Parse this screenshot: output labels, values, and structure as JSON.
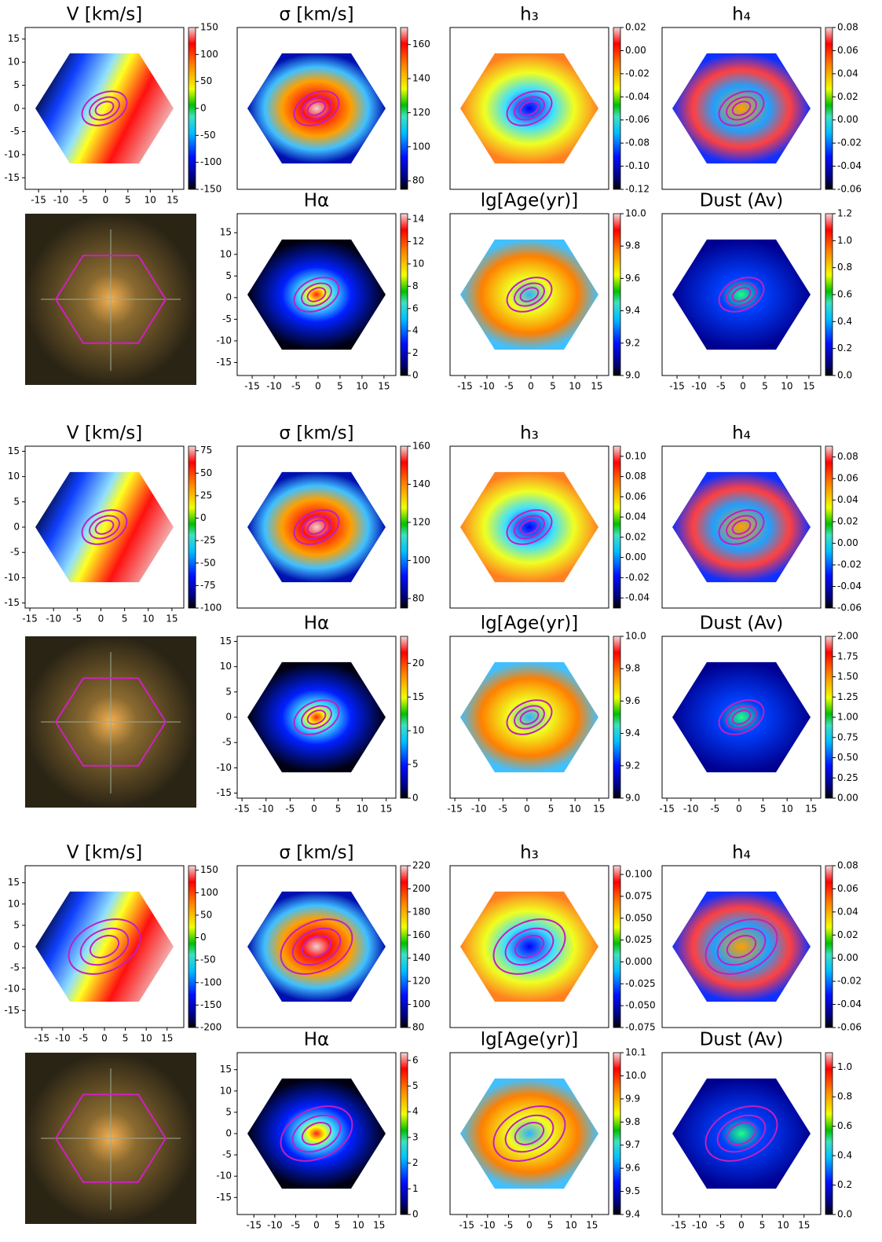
{
  "chart_data": [
    {
      "type": "heatmap",
      "title": "V [km/s]",
      "xlim": [
        -18,
        17.5
      ],
      "xticks": [
        -15,
        -10,
        -5,
        0,
        5,
        10,
        15
      ],
      "ylim": [
        -17.5,
        17.5
      ],
      "yticks": [
        -15,
        -10,
        -5,
        0,
        5,
        10,
        15
      ],
      "clim": [
        -150,
        150
      ],
      "cticks": [
        -150,
        -100,
        -50,
        0,
        50,
        100,
        150
      ]
    },
    {
      "type": "heatmap",
      "title": "σ [km/s]",
      "clim": [
        75,
        170
      ],
      "cticks": [
        80,
        100,
        120,
        140,
        160
      ]
    },
    {
      "type": "heatmap",
      "title": "h₃",
      "clim": [
        -0.12,
        0.02
      ],
      "cticks": [
        -0.12,
        {
          "value": -0.1,
          "label": "-0.10"
        },
        -0.08,
        -0.06,
        -0.04,
        -0.02,
        {
          "value": 0,
          "label": "0.00"
        },
        0.02
      ]
    },
    {
      "type": "heatmap",
      "title": "h₄",
      "clim": [
        -0.06,
        0.08
      ],
      "cticks": [
        -0.06,
        -0.04,
        -0.02,
        {
          "value": 0,
          "label": "0.00"
        },
        0.02,
        0.04,
        0.06,
        0.08
      ]
    },
    {
      "type": "image"
    },
    {
      "type": "heatmap",
      "title": "Hα",
      "xlim": [
        -18.4,
        17.7
      ],
      "xticks": [
        -15,
        -10,
        -5,
        0,
        5,
        10,
        15
      ],
      "ylim": [
        -18,
        19.4
      ],
      "yticks": [
        -15,
        -10,
        -5,
        0,
        5,
        10,
        15
      ],
      "clim": [
        0,
        14.5
      ],
      "cticks": [
        0,
        2,
        4,
        6,
        8,
        10,
        12,
        14
      ]
    },
    {
      "type": "heatmap",
      "title": "lg[Age(yr)]",
      "xlim": [
        -18.4,
        17.7
      ],
      "xticks": [
        -15,
        -10,
        -5,
        0,
        5,
        10,
        15
      ],
      "clim": [
        9,
        10
      ],
      "cticks": [
        {
          "value": 9,
          "label": "9.0"
        },
        9.2,
        9.4,
        9.6,
        9.8,
        {
          "value": 10,
          "label": "10.0"
        }
      ]
    },
    {
      "type": "heatmap",
      "title": "Dust (Av)",
      "xlim": [
        -18.4,
        17.7
      ],
      "xticks": [
        -15,
        -10,
        -5,
        0,
        5,
        10,
        15
      ],
      "clim": [
        0,
        1.2
      ],
      "cticks": [
        {
          "value": 0,
          "label": "0.0"
        },
        0.2,
        0.4,
        0.6,
        0.8,
        {
          "value": 1,
          "label": "1.0"
        },
        1.2
      ]
    },
    {
      "type": "heatmap",
      "title": "V [km/s]",
      "xlim": [
        -16,
        17.5
      ],
      "xticks": [
        -15,
        -10,
        -5,
        0,
        5,
        10,
        15
      ],
      "ylim": [
        -16,
        16
      ],
      "yticks": [
        -15,
        -10,
        -5,
        0,
        5,
        10,
        15
      ],
      "clim": [
        -100,
        80
      ],
      "cticks": [
        -100,
        -75,
        -50,
        -25,
        0,
        25,
        50,
        75
      ]
    },
    {
      "type": "heatmap",
      "title": "σ [km/s]",
      "clim": [
        75,
        160
      ],
      "cticks": [
        80,
        100,
        120,
        140,
        160
      ]
    },
    {
      "type": "heatmap",
      "title": "h₃",
      "clim": [
        -0.05,
        0.11
      ],
      "cticks": [
        -0.04,
        -0.02,
        {
          "value": 0,
          "label": "0.00"
        },
        0.02,
        0.04,
        0.06,
        0.08,
        {
          "value": 0.1,
          "label": "0.10"
        }
      ]
    },
    {
      "type": "heatmap",
      "title": "h₄",
      "clim": [
        -0.06,
        0.09
      ],
      "cticks": [
        -0.06,
        -0.04,
        -0.02,
        {
          "value": 0,
          "label": "0.00"
        },
        0.02,
        0.04,
        0.06,
        0.08
      ]
    },
    {
      "type": "image"
    },
    {
      "type": "heatmap",
      "title": "Hα",
      "xlim": [
        -16,
        17
      ],
      "xticks": [
        -15,
        -10,
        -5,
        0,
        5,
        10,
        15
      ],
      "ylim": [
        -16,
        16
      ],
      "yticks": [
        -15,
        -10,
        -5,
        0,
        5,
        10,
        15
      ],
      "clim": [
        0,
        24
      ],
      "cticks": [
        0,
        5,
        10,
        15,
        20
      ]
    },
    {
      "type": "heatmap",
      "title": "lg[Age(yr)]",
      "xlim": [
        -16,
        17
      ],
      "xticks": [
        -15,
        -10,
        -5,
        0,
        5,
        10,
        15
      ],
      "clim": [
        9,
        10
      ],
      "cticks": [
        {
          "value": 9,
          "label": "9.0"
        },
        9.2,
        9.4,
        9.6,
        9.8,
        {
          "value": 10,
          "label": "10.0"
        }
      ]
    },
    {
      "type": "heatmap",
      "title": "Dust (Av)",
      "xlim": [
        -16,
        17
      ],
      "xticks": [
        -15,
        -10,
        -5,
        0,
        5,
        10,
        15
      ],
      "clim": [
        0,
        2
      ],
      "cticks": [
        {
          "value": 0,
          "label": "0.00"
        },
        0.25,
        {
          "value": 0.5,
          "label": "0.50"
        },
        0.75,
        {
          "value": 1,
          "label": "1.00"
        },
        1.25,
        {
          "value": 1.5,
          "label": "1.50"
        },
        1.75,
        {
          "value": 2,
          "label": "2.00"
        }
      ]
    },
    {
      "type": "heatmap",
      "title": "V [km/s]",
      "xlim": [
        -19,
        19
      ],
      "xticks": [
        -15,
        -10,
        -5,
        0,
        5,
        10,
        15
      ],
      "ylim": [
        -19,
        19
      ],
      "yticks": [
        -15,
        -10,
        -5,
        0,
        5,
        10,
        15
      ],
      "clim": [
        -200,
        160
      ],
      "cticks": [
        -200,
        -150,
        -100,
        -50,
        0,
        50,
        100,
        150
      ]
    },
    {
      "type": "heatmap",
      "title": "σ [km/s]",
      "clim": [
        80,
        220
      ],
      "cticks": [
        80,
        100,
        120,
        140,
        160,
        180,
        200,
        220
      ]
    },
    {
      "type": "heatmap",
      "title": "h₃",
      "clim": [
        -0.075,
        0.11
      ],
      "cticks": [
        -0.075,
        {
          "value": -0.05,
          "label": "-0.050"
        },
        -0.025,
        {
          "value": 0,
          "label": "0.000"
        },
        0.025,
        {
          "value": 0.05,
          "label": "0.050"
        },
        0.075,
        {
          "value": 0.1,
          "label": "0.100"
        }
      ]
    },
    {
      "type": "heatmap",
      "title": "h₄",
      "clim": [
        -0.06,
        0.08
      ],
      "cticks": [
        -0.06,
        -0.04,
        -0.02,
        {
          "value": 0,
          "label": "0.00"
        },
        0.02,
        0.04,
        0.06,
        0.08
      ]
    },
    {
      "type": "image"
    },
    {
      "type": "heatmap",
      "title": "Hα",
      "xlim": [
        -19,
        19
      ],
      "xticks": [
        -15,
        -10,
        -5,
        0,
        5,
        10,
        15
      ],
      "ylim": [
        -19,
        19
      ],
      "yticks": [
        -15,
        -10,
        -5,
        0,
        5,
        10,
        15
      ],
      "clim": [
        0,
        6.3
      ],
      "cticks": [
        0,
        1,
        2,
        3,
        4,
        5,
        6
      ]
    },
    {
      "type": "heatmap",
      "title": "lg[Age(yr)]",
      "xlim": [
        -19,
        19
      ],
      "xticks": [
        -15,
        -10,
        -5,
        0,
        5,
        10,
        15
      ],
      "clim": [
        9.4,
        10.1
      ],
      "cticks": [
        9.4,
        9.5,
        9.6,
        9.7,
        9.8,
        9.9,
        {
          "value": 10,
          "label": "10.0"
        },
        10.1
      ]
    },
    {
      "type": "heatmap",
      "title": "Dust (Av)",
      "xlim": [
        -19,
        19
      ],
      "xticks": [
        -15,
        -10,
        -5,
        0,
        5,
        10,
        15
      ],
      "clim": [
        0,
        1.1
      ],
      "cticks": [
        {
          "value": 0,
          "label": "0.0"
        },
        0.2,
        0.4,
        0.6,
        0.8,
        {
          "value": 1,
          "label": "1.0"
        }
      ]
    }
  ]
}
